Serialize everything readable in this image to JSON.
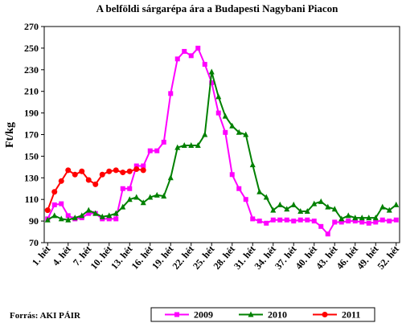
{
  "chart_data": {
    "type": "line",
    "title": "A belföldi sárgarépa ára a Budapesti Nagybani Piacon",
    "y_label": "Ft/kg",
    "source": "Forrás: AKI PÁIR",
    "categories": [
      "1. hét",
      null,
      null,
      "4. hét",
      null,
      null,
      "7. hét",
      null,
      null,
      "10. hét",
      null,
      null,
      "13. hét",
      null,
      null,
      "16. hét",
      null,
      null,
      "19. hét",
      null,
      null,
      "22. hét",
      null,
      null,
      "25. hét",
      null,
      null,
      "28. hét",
      null,
      null,
      "31. hét",
      null,
      null,
      "34. hét",
      null,
      null,
      "37. hét",
      null,
      null,
      "40. hét",
      null,
      null,
      "43. hét",
      null,
      null,
      "46. hét",
      null,
      null,
      "49. hét",
      null,
      null,
      "52. hét"
    ],
    "ylim": [
      70,
      270
    ],
    "yticks": [
      70,
      90,
      110,
      130,
      150,
      170,
      190,
      210,
      230,
      250,
      270
    ],
    "series": [
      {
        "name": "2009",
        "color": "#ff00ff",
        "marker": "square",
        "values": [
          92,
          105,
          106,
          95,
          92,
          93,
          97,
          97,
          92,
          92,
          92,
          120,
          120,
          141,
          141,
          155,
          155,
          163,
          208,
          240,
          247,
          243,
          250,
          235,
          218,
          190,
          172,
          133,
          120,
          110,
          92,
          90,
          88,
          91,
          91,
          91,
          90,
          91,
          91,
          90,
          85,
          78,
          89,
          89,
          90,
          90,
          89,
          88,
          89,
          91,
          90,
          91
        ]
      },
      {
        "name": "2010",
        "color": "#008000",
        "marker": "triangle",
        "values": [
          91,
          95,
          92,
          91,
          93,
          95,
          100,
          97,
          94,
          95,
          97,
          103,
          110,
          112,
          107,
          112,
          114,
          113,
          130,
          158,
          160,
          160,
          160,
          170,
          228,
          205,
          187,
          178,
          172,
          170,
          142,
          117,
          112,
          100,
          105,
          101,
          105,
          99,
          99,
          106,
          108,
          103,
          101,
          92,
          95,
          93,
          93,
          93,
          93,
          103,
          100,
          105
        ]
      },
      {
        "name": "2011",
        "color": "#ff0000",
        "marker": "circle",
        "values": [
          100,
          117,
          127,
          137,
          133,
          136,
          128,
          124,
          133,
          136,
          137,
          135,
          136,
          138,
          137,
          null,
          null,
          null,
          null,
          null,
          null,
          null,
          null,
          null,
          null,
          null,
          null,
          null,
          null,
          null,
          null,
          null,
          null,
          null,
          null,
          null,
          null,
          null,
          null,
          null,
          null,
          null,
          null,
          null,
          null,
          null,
          null,
          null,
          null,
          null,
          null,
          null
        ]
      }
    ]
  }
}
